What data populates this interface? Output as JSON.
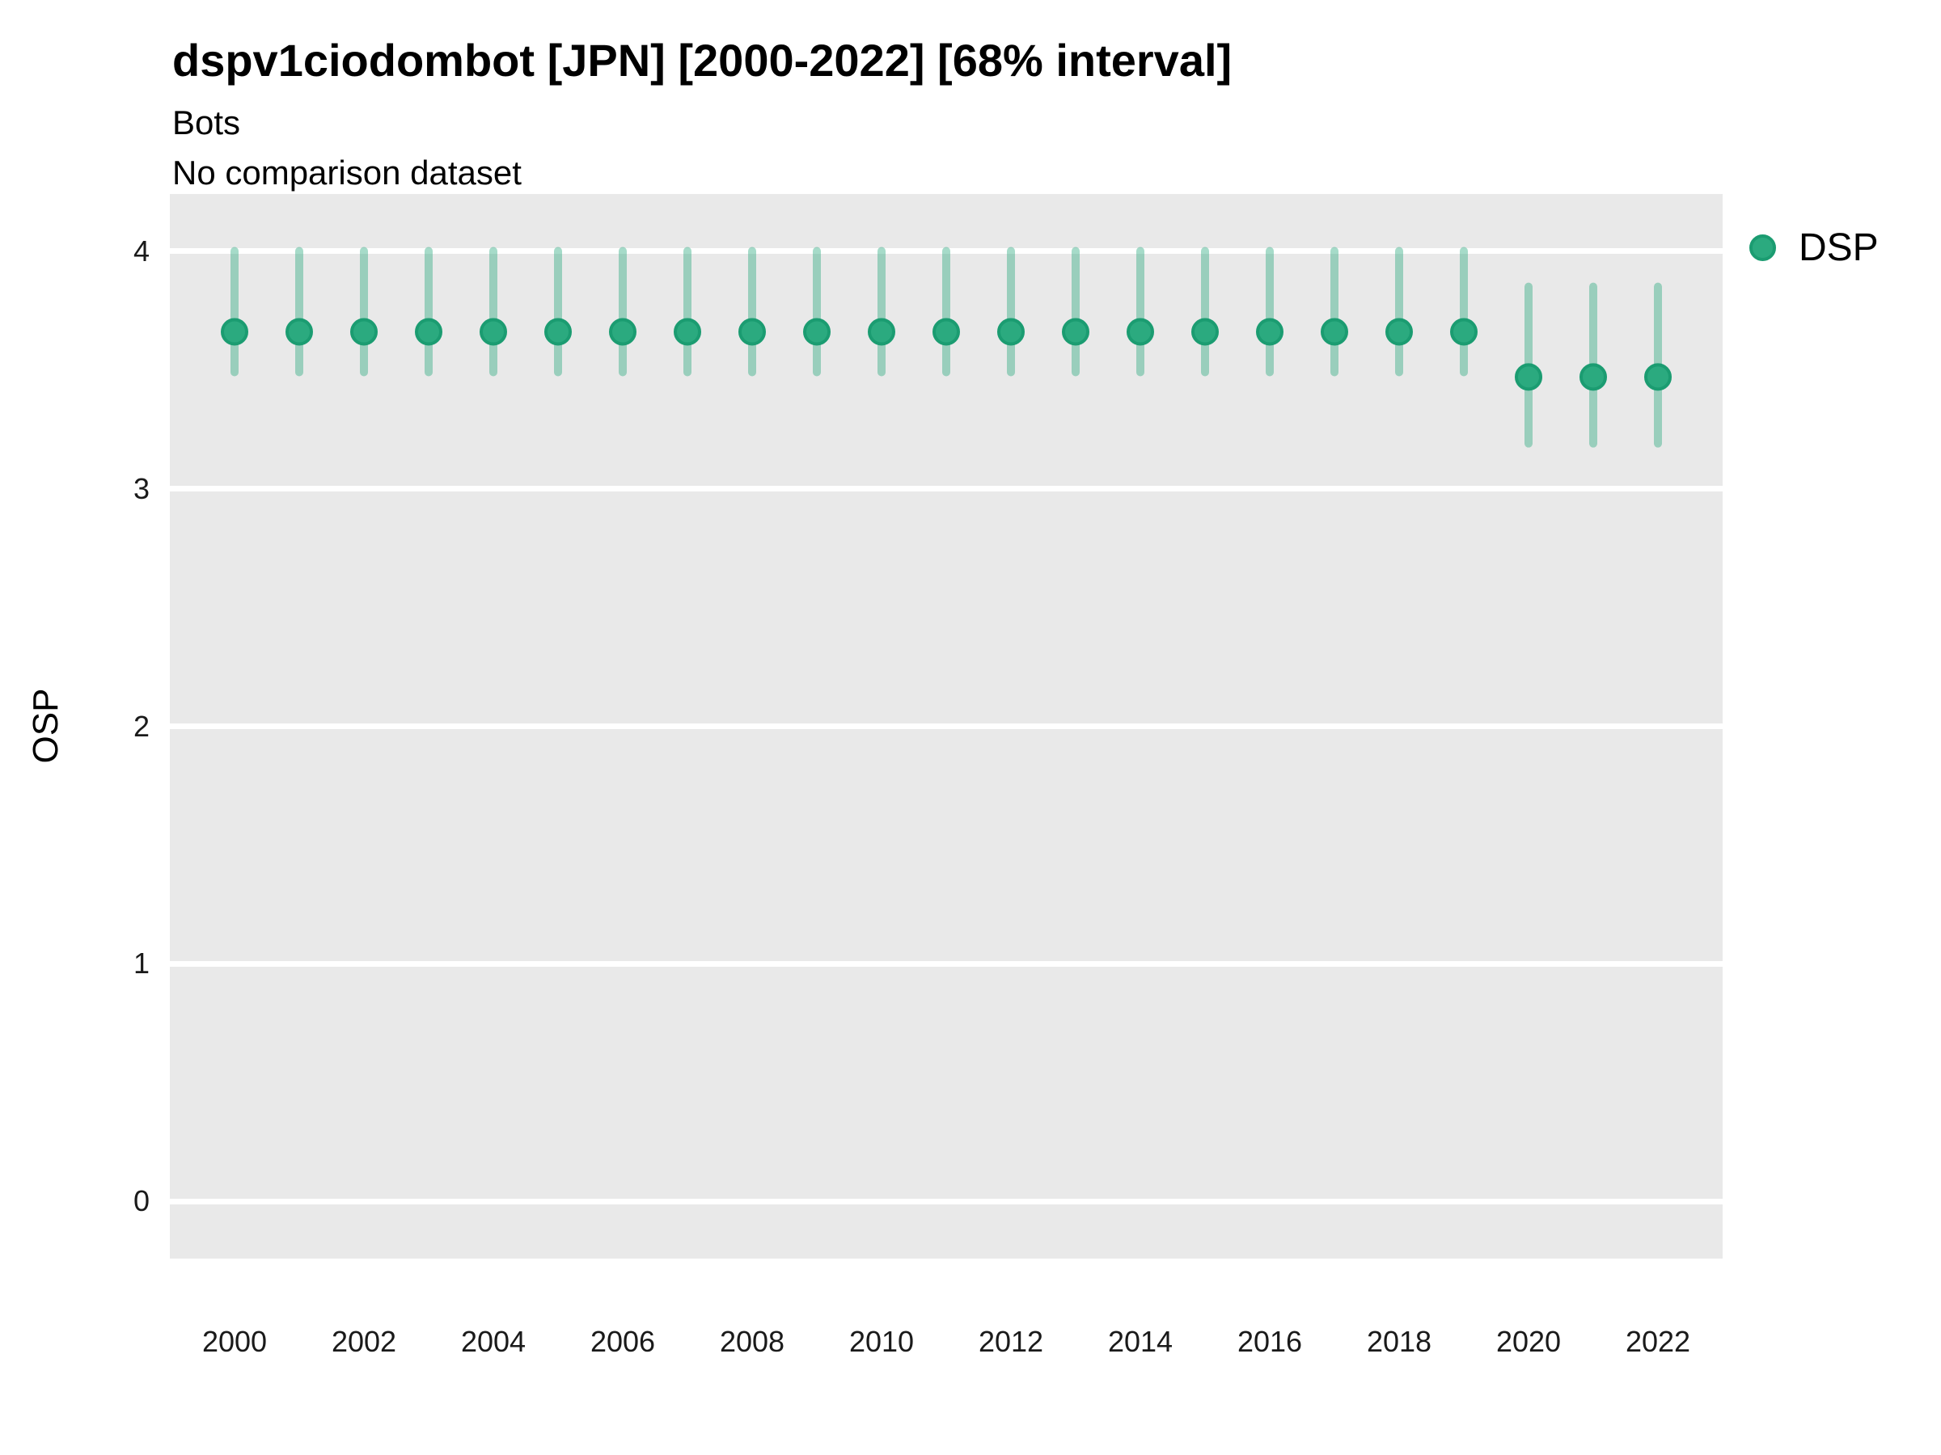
{
  "header": {
    "title": "dspv1ciodombot [JPN] [2000-2022] [68% interval]",
    "subtitle1": "Bots",
    "subtitle2": "No comparison dataset"
  },
  "legend": {
    "items": [
      {
        "label": "DSP",
        "color": "#2baa7f",
        "stroke": "#1b9c71"
      }
    ]
  },
  "colors": {
    "panel_bg": "#e9e9e9",
    "grid": "#ffffff",
    "point_fill": "#2baa7f",
    "point_stroke": "#1b9c71",
    "interval_color": "#2baa7f",
    "interval_opacity": 0.42
  },
  "chart_data": {
    "type": "pointrange",
    "title": "dspv1ciodombot [JPN] [2000-2022] [68% interval]",
    "subtitle": [
      "Bots",
      "No comparison dataset"
    ],
    "xlabel": "",
    "ylabel": "OSP",
    "xlim": [
      1999,
      2023
    ],
    "ylim": [
      -0.24,
      4.24
    ],
    "x_ticks": [
      2000,
      2002,
      2004,
      2006,
      2008,
      2010,
      2012,
      2014,
      2016,
      2018,
      2020,
      2022
    ],
    "y_ticks": [
      0,
      1,
      2,
      3,
      4
    ],
    "grid": "major-white-on-gray",
    "legend_position": "right-top",
    "series": [
      {
        "name": "DSP",
        "x": [
          2000,
          2001,
          2002,
          2003,
          2004,
          2005,
          2006,
          2007,
          2008,
          2009,
          2010,
          2011,
          2012,
          2013,
          2014,
          2015,
          2016,
          2017,
          2018,
          2019,
          2020,
          2021,
          2022
        ],
        "y": [
          3.66,
          3.66,
          3.66,
          3.66,
          3.66,
          3.66,
          3.66,
          3.66,
          3.66,
          3.66,
          3.66,
          3.66,
          3.66,
          3.66,
          3.66,
          3.66,
          3.66,
          3.66,
          3.66,
          3.66,
          3.47,
          3.47,
          3.47
        ],
        "y_lower": [
          3.49,
          3.49,
          3.49,
          3.49,
          3.49,
          3.49,
          3.49,
          3.49,
          3.49,
          3.49,
          3.49,
          3.49,
          3.49,
          3.49,
          3.49,
          3.49,
          3.49,
          3.49,
          3.49,
          3.49,
          3.19,
          3.19,
          3.19
        ],
        "y_upper": [
          4.0,
          4.0,
          4.0,
          4.0,
          4.0,
          4.0,
          4.0,
          4.0,
          4.0,
          4.0,
          4.0,
          4.0,
          4.0,
          4.0,
          4.0,
          4.0,
          4.0,
          4.0,
          4.0,
          4.0,
          3.85,
          3.85,
          3.85
        ]
      }
    ]
  }
}
